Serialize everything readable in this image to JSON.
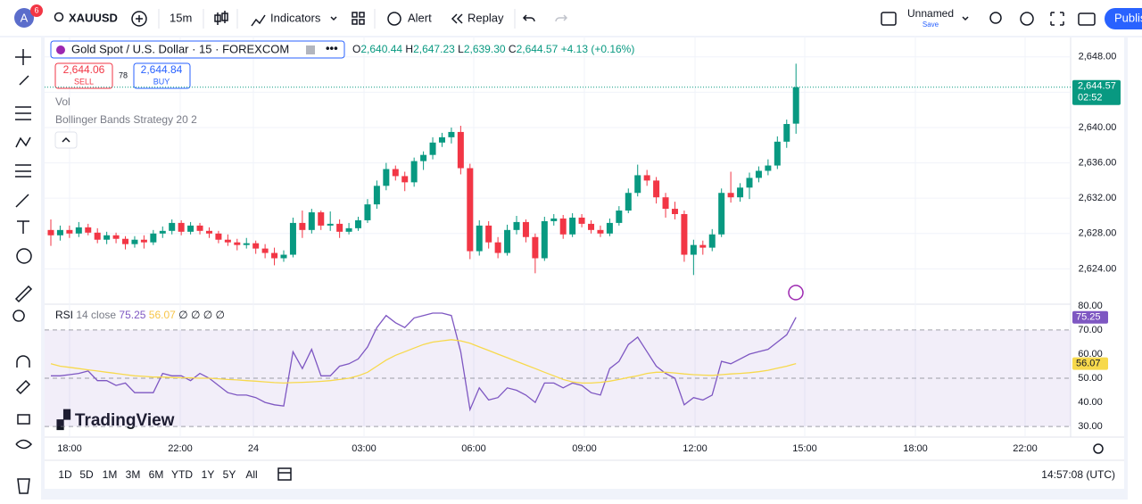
{
  "toolbar": {
    "avatar": "A",
    "badge": "6",
    "symbol": "XAUUSD",
    "interval": "15m",
    "indicators": "Indicators",
    "alert": "Alert",
    "replay": "Replay",
    "layout_name": "Unnamed",
    "layout_save": "Save",
    "publish": "Publish"
  },
  "legend": {
    "symbol": "Gold Spot / U.S. Dollar · 15 · FOREXCOM",
    "o": "O",
    "open": "2,640.44",
    "h": "H",
    "high": "2,647.23",
    "l": "L",
    "low": "2,639.30",
    "c": "C",
    "close": "2,644.57",
    "change": "+4.13 (+0.16%)",
    "sell_price": "2,644.06",
    "sell": "SELL",
    "spread": "78",
    "buy_price": "2,644.84",
    "buy": "BUY",
    "vol": "Vol",
    "strategy": "Bollinger Bands Strategy 20 2"
  },
  "rsi_legend": {
    "name": "RSI",
    "params": "14 close",
    "value": "75.25",
    "ma_value": "56.07",
    "extras": [
      "∅",
      "∅",
      "∅",
      "∅"
    ]
  },
  "watermark": "TradingView",
  "time_labels": [
    "18:00",
    "22:00",
    "24",
    "03:00",
    "06:00",
    "09:00",
    "12:00",
    "15:00",
    "18:00",
    "22:00"
  ],
  "ranges": [
    "1D",
    "5D",
    "1M",
    "3M",
    "6M",
    "YTD",
    "1Y",
    "5Y",
    "All"
  ],
  "clock": "14:57:08 (UTC)",
  "chart_data": [
    {
      "type": "candlestick",
      "up_color": "#089981",
      "down_color": "#f23645",
      "candles": [
        [
          2628.4,
          2629.6,
          2626.6,
          2627.8
        ],
        [
          2627.8,
          2628.9,
          2627.2,
          2628.4
        ],
        [
          2628.4,
          2628.9,
          2627.5,
          2628.0
        ],
        [
          2628.0,
          2629.3,
          2627.6,
          2628.7
        ],
        [
          2628.7,
          2629.1,
          2627.8,
          2628.1
        ],
        [
          2628.1,
          2628.6,
          2626.9,
          2627.3
        ],
        [
          2627.3,
          2628.2,
          2626.8,
          2627.8
        ],
        [
          2627.8,
          2628.1,
          2626.9,
          2627.4
        ],
        [
          2627.4,
          2627.7,
          2626.2,
          2626.8
        ],
        [
          2626.8,
          2627.7,
          2626.4,
          2627.3
        ],
        [
          2627.3,
          2627.8,
          2626.3,
          2627.0
        ],
        [
          2627.0,
          2628.4,
          2626.7,
          2628.0
        ],
        [
          2628.0,
          2628.8,
          2627.5,
          2628.3
        ],
        [
          2628.3,
          2629.6,
          2627.9,
          2629.2
        ],
        [
          2629.2,
          2629.5,
          2627.8,
          2628.2
        ],
        [
          2628.2,
          2629.3,
          2627.9,
          2628.9
        ],
        [
          2628.9,
          2629.2,
          2627.9,
          2628.3
        ],
        [
          2628.3,
          2628.7,
          2627.5,
          2628.0
        ],
        [
          2628.0,
          2628.3,
          2626.9,
          2627.3
        ],
        [
          2627.3,
          2627.9,
          2626.6,
          2627.0
        ],
        [
          2627.0,
          2627.4,
          2626.1,
          2626.7
        ],
        [
          2626.7,
          2627.5,
          2626.3,
          2626.9
        ],
        [
          2626.9,
          2627.2,
          2625.7,
          2626.3
        ],
        [
          2626.3,
          2626.8,
          2625.2,
          2625.8
        ],
        [
          2625.8,
          2626.4,
          2624.4,
          2625.2
        ],
        [
          2625.2,
          2626.1,
          2624.8,
          2625.6
        ],
        [
          2625.6,
          2629.8,
          2625.3,
          2629.2
        ],
        [
          2629.2,
          2630.6,
          2627.5,
          2628.4
        ],
        [
          2628.4,
          2630.8,
          2628.0,
          2630.4
        ],
        [
          2630.4,
          2630.6,
          2628.4,
          2628.9
        ],
        [
          2628.9,
          2630.5,
          2628.3,
          2629.1
        ],
        [
          2629.1,
          2629.6,
          2627.5,
          2628.2
        ],
        [
          2628.2,
          2629.2,
          2627.9,
          2628.6
        ],
        [
          2628.6,
          2629.9,
          2628.3,
          2629.5
        ],
        [
          2629.5,
          2631.9,
          2629.2,
          2631.3
        ],
        [
          2631.3,
          2634.0,
          2630.8,
          2633.4
        ],
        [
          2633.4,
          2636.0,
          2632.9,
          2635.3
        ],
        [
          2635.3,
          2635.7,
          2634.0,
          2634.5
        ],
        [
          2634.5,
          2635.0,
          2632.8,
          2633.8
        ],
        [
          2633.8,
          2636.6,
          2633.3,
          2636.2
        ],
        [
          2636.2,
          2637.3,
          2635.2,
          2636.9
        ],
        [
          2636.9,
          2638.9,
          2636.4,
          2638.3
        ],
        [
          2638.3,
          2639.4,
          2637.8,
          2638.9
        ],
        [
          2638.9,
          2640.0,
          2638.2,
          2639.5
        ],
        [
          2639.5,
          2640.2,
          2634.7,
          2635.4
        ],
        [
          2635.4,
          2635.9,
          2625.1,
          2626.0
        ],
        [
          2626.0,
          2629.5,
          2625.5,
          2628.9
        ],
        [
          2628.9,
          2629.4,
          2626.3,
          2627.0
        ],
        [
          2627.0,
          2627.6,
          2625.2,
          2625.8
        ],
        [
          2625.8,
          2629.0,
          2625.5,
          2628.4
        ],
        [
          2628.4,
          2630.0,
          2627.9,
          2629.3
        ],
        [
          2629.3,
          2629.6,
          2627.0,
          2627.6
        ],
        [
          2627.6,
          2628.0,
          2623.5,
          2625.2
        ],
        [
          2625.2,
          2629.9,
          2624.9,
          2629.4
        ],
        [
          2629.4,
          2630.2,
          2628.9,
          2629.7
        ],
        [
          2629.7,
          2630.1,
          2627.4,
          2627.9
        ],
        [
          2627.9,
          2630.3,
          2627.6,
          2629.8
        ],
        [
          2629.8,
          2630.2,
          2628.7,
          2629.1
        ],
        [
          2629.1,
          2629.5,
          2628.0,
          2628.4
        ],
        [
          2628.4,
          2628.9,
          2627.6,
          2628.0
        ],
        [
          2628.0,
          2629.7,
          2627.7,
          2629.2
        ],
        [
          2629.2,
          2631.1,
          2628.9,
          2630.6
        ],
        [
          2630.6,
          2633.1,
          2630.3,
          2632.6
        ],
        [
          2632.6,
          2635.8,
          2632.2,
          2634.6
        ],
        [
          2634.6,
          2635.2,
          2633.4,
          2634.0
        ],
        [
          2634.0,
          2634.4,
          2631.4,
          2632.1
        ],
        [
          2632.1,
          2632.6,
          2629.8,
          2630.8
        ],
        [
          2630.8,
          2631.6,
          2629.6,
          2630.2
        ],
        [
          2630.2,
          2630.6,
          2624.8,
          2625.6
        ],
        [
          2625.6,
          2627.3,
          2623.3,
          2626.7
        ],
        [
          2626.7,
          2627.2,
          2625.6,
          2626.4
        ],
        [
          2626.4,
          2628.5,
          2626.0,
          2627.9
        ],
        [
          2627.9,
          2633.1,
          2627.6,
          2632.6
        ],
        [
          2632.6,
          2635.0,
          2631.5,
          2632.1
        ],
        [
          2632.1,
          2633.7,
          2631.6,
          2633.2
        ],
        [
          2633.2,
          2634.9,
          2631.9,
          2634.3
        ],
        [
          2634.3,
          2635.6,
          2633.8,
          2635.1
        ],
        [
          2635.1,
          2636.4,
          2634.6,
          2635.7
        ],
        [
          2635.7,
          2639.0,
          2635.3,
          2638.4
        ],
        [
          2638.4,
          2640.9,
          2637.7,
          2640.4
        ],
        [
          2640.44,
          2647.23,
          2639.3,
          2644.57
        ]
      ],
      "ylim": [
        2620.1,
        2650.2
      ],
      "yticks": [
        {
          "value": 2624,
          "label": "2,624.00"
        },
        {
          "value": 2628,
          "label": "2,628.00"
        },
        {
          "value": 2632,
          "label": "2,632.00"
        },
        {
          "value": 2636,
          "label": "2,636.00"
        },
        {
          "value": 2640,
          "label": "2,640.00"
        },
        {
          "value": 2644,
          "label": "2,644.00"
        },
        {
          "value": 2648,
          "label": "2,648.00"
        }
      ],
      "last_price": {
        "value": 2644.57,
        "label": "2,644.57"
      },
      "countdown": "02:52",
      "grid": true
    },
    {
      "type": "line",
      "ylim": [
        25.6,
        80.7
      ],
      "yticks": [
        {
          "value": 30,
          "label": "30.00"
        },
        {
          "value": 40,
          "label": "40.00"
        },
        {
          "value": 50,
          "label": "50.00"
        },
        {
          "value": 60,
          "label": "60.00"
        },
        {
          "value": 70,
          "label": "70.00"
        },
        {
          "value": 80,
          "label": "80.00"
        }
      ],
      "bands": [
        30,
        50,
        70
      ],
      "band_color": "#7e57c2",
      "series": [
        {
          "color": "#7e57c2",
          "values": [
            51,
            51,
            51.5,
            52,
            53,
            49,
            49,
            47,
            48,
            44,
            44,
            44,
            52,
            51,
            51,
            49,
            52,
            50,
            47,
            44,
            43,
            43,
            42,
            40,
            39,
            38.5,
            61,
            54,
            62,
            51,
            51,
            55,
            56,
            58,
            63,
            71,
            76,
            73,
            71,
            75,
            76,
            77,
            77,
            76,
            61,
            37,
            46,
            41,
            42,
            46,
            45,
            43,
            40,
            48,
            48,
            46,
            48,
            47,
            44,
            43,
            54,
            57,
            64,
            67,
            61,
            55,
            52,
            50,
            39,
            42,
            41,
            43,
            57,
            56,
            58,
            60,
            61,
            62,
            65,
            68,
            75.25
          ],
          "last": {
            "value": 75.25,
            "label": "75.25"
          }
        },
        {
          "color": "#f7d94c",
          "values": [
            56,
            55,
            54.5,
            54,
            53.5,
            53,
            52.5,
            52,
            51.5,
            51,
            50.8,
            50.5,
            50.5,
            50.3,
            50.2,
            50.2,
            50,
            50,
            49.8,
            49.5,
            49.3,
            49,
            48.8,
            48.5,
            48.2,
            48,
            48.2,
            48.3,
            48.5,
            48.7,
            49,
            49.5,
            50,
            51,
            52.5,
            55,
            57.5,
            59.5,
            61,
            62.5,
            64,
            65,
            65.5,
            66,
            65.5,
            64.5,
            63,
            61.5,
            60,
            58.5,
            57,
            55.5,
            54,
            52.5,
            51,
            49.5,
            48.5,
            48,
            48,
            48.3,
            48.8,
            49.5,
            50.3,
            51,
            52,
            52.5,
            52.5,
            52.2,
            51.8,
            51.5,
            51.3,
            51.2,
            51.5,
            51.8,
            52,
            52.3,
            52.7,
            53.3,
            54.2,
            55,
            56.07
          ],
          "last": {
            "value": 56.07,
            "label": "56.07"
          }
        }
      ]
    }
  ]
}
